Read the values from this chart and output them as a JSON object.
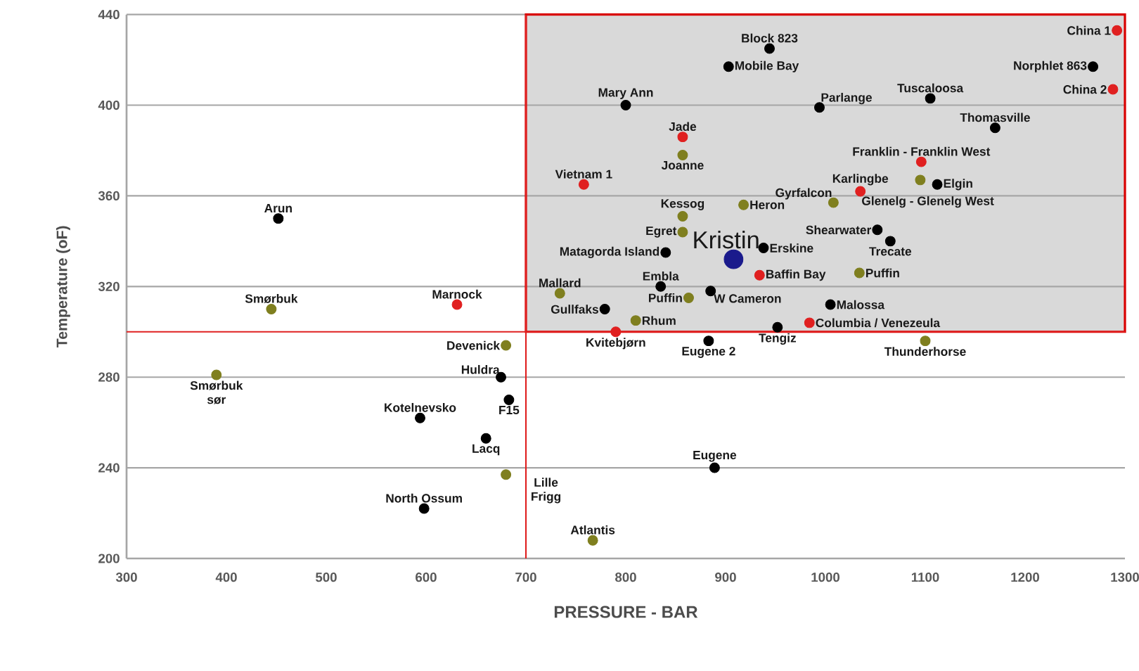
{
  "chart_data": {
    "type": "scatter",
    "xlabel": "PRESSURE - BAR",
    "ylabel": "Temperature (oF)",
    "xlim": [
      300,
      1300
    ],
    "ylim": [
      200,
      440
    ],
    "xticks": [
      300,
      400,
      500,
      600,
      700,
      800,
      900,
      1000,
      1100,
      1200,
      1300
    ],
    "yticks": [
      200,
      240,
      280,
      320,
      360,
      400,
      440
    ],
    "grid": "y",
    "ref_lines": [
      {
        "axis": "x",
        "value": 700,
        "color": "#e02020"
      },
      {
        "axis": "y",
        "value": 300,
        "color": "#e02020"
      }
    ],
    "bands": [
      {
        "axis": "x",
        "from": 700,
        "to": 1300,
        "color": "#d9d9d9"
      }
    ],
    "series": [
      {
        "color": "#000000",
        "x": [
          452,
          675,
          683,
          594,
          660,
          598,
          889,
          883,
          952,
          779,
          885,
          1005,
          835,
          840,
          938,
          1052,
          1065,
          1112,
          800,
          994,
          903,
          944,
          1105,
          1170,
          1268
        ],
        "values": [
          350,
          280,
          270,
          262,
          253,
          222,
          240,
          296,
          302,
          310,
          318,
          312,
          320,
          335,
          337,
          345,
          340,
          365,
          400,
          399,
          417,
          425,
          403,
          390,
          417
        ]
      },
      {
        "color": "#7f7f1f",
        "x": [
          445,
          390,
          680,
          680,
          767,
          1100,
          810,
          863,
          734,
          1034,
          857,
          857,
          918,
          1008,
          1095,
          857
        ],
        "values": [
          310,
          281,
          294,
          237,
          208,
          296,
          305,
          315,
          317,
          326,
          344,
          351,
          356,
          357,
          367,
          378
        ]
      },
      {
        "color": "#e02020",
        "x": [
          631,
          790,
          984,
          934,
          1035,
          1096,
          758,
          857,
          1292,
          1288
        ],
        "values": [
          312,
          300,
          304,
          325,
          362,
          375,
          365,
          386,
          433,
          407
        ]
      },
      {
        "color": "#1a1a8c",
        "x": [
          908
        ],
        "values": [
          332
        ]
      }
    ],
    "annotations": [
      {
        "text": "Arun",
        "x": 452,
        "y": 350
      },
      {
        "text": "Smørbuk",
        "x": 445,
        "y": 310
      },
      {
        "text": "Marnock",
        "x": 631,
        "y": 312
      },
      {
        "text": "Smørbuk sør",
        "x": 390,
        "y": 281
      },
      {
        "text": "Devenick",
        "x": 680,
        "y": 294
      },
      {
        "text": "Huldra",
        "x": 675,
        "y": 280
      },
      {
        "text": "F15",
        "x": 683,
        "y": 270
      },
      {
        "text": "Kotelnevsko",
        "x": 594,
        "y": 262
      },
      {
        "text": "Lacq",
        "x": 660,
        "y": 253
      },
      {
        "text": "Lille Frigg",
        "x": 680,
        "y": 237
      },
      {
        "text": "North Ossum",
        "x": 598,
        "y": 222
      },
      {
        "text": "Atlantis",
        "x": 767,
        "y": 208
      },
      {
        "text": "Eugene",
        "x": 889,
        "y": 240
      },
      {
        "text": "Eugene 2",
        "x": 883,
        "y": 296
      },
      {
        "text": "Kvitebjørn",
        "x": 790,
        "y": 300
      },
      {
        "text": "Tengiz",
        "x": 952,
        "y": 302
      },
      {
        "text": "Thunderhorse",
        "x": 1100,
        "y": 296
      },
      {
        "text": "Columbia / Venezeula",
        "x": 984,
        "y": 304
      },
      {
        "text": "Rhum",
        "x": 810,
        "y": 305
      },
      {
        "text": "Gullfaks",
        "x": 779,
        "y": 310
      },
      {
        "text": "Puffin",
        "x": 863,
        "y": 315
      },
      {
        "text": "W Cameron",
        "x": 885,
        "y": 318
      },
      {
        "text": "Malossa",
        "x": 1005,
        "y": 312
      },
      {
        "text": "Mallard",
        "x": 734,
        "y": 317
      },
      {
        "text": "Embla",
        "x": 835,
        "y": 320
      },
      {
        "text": "Baffin Bay",
        "x": 934,
        "y": 325
      },
      {
        "text": "Puffin",
        "x": 1034,
        "y": 326
      },
      {
        "text": "Matagorda Island",
        "x": 840,
        "y": 335
      },
      {
        "text": "Kristin",
        "x": 908,
        "y": 332
      },
      {
        "text": "Erskine",
        "x": 938,
        "y": 337
      },
      {
        "text": "Egret",
        "x": 857,
        "y": 344
      },
      {
        "text": "Kessog",
        "x": 857,
        "y": 351
      },
      {
        "text": "Heron",
        "x": 918,
        "y": 356
      },
      {
        "text": "Shearwater",
        "x": 1052,
        "y": 345
      },
      {
        "text": "Trecate",
        "x": 1065,
        "y": 340
      },
      {
        "text": "Gyrfalcon",
        "x": 1008,
        "y": 357
      },
      {
        "text": "Glenelg - Glenelg West",
        "x": 1095,
        "y": 367
      },
      {
        "text": "Karlingbe",
        "x": 1035,
        "y": 362
      },
      {
        "text": "Franklin - Franklin West",
        "x": 1096,
        "y": 375
      },
      {
        "text": "Elgin",
        "x": 1112,
        "y": 365
      },
      {
        "text": "Vietnam 1",
        "x": 758,
        "y": 365
      },
      {
        "text": "Joanne",
        "x": 857,
        "y": 378
      },
      {
        "text": "Jade",
        "x": 857,
        "y": 386
      },
      {
        "text": "Mary Ann",
        "x": 800,
        "y": 400
      },
      {
        "text": "Parlange",
        "x": 994,
        "y": 399
      },
      {
        "text": "Mobile Bay",
        "x": 903,
        "y": 417
      },
      {
        "text": "Block 823",
        "x": 944,
        "y": 425
      },
      {
        "text": "Tuscaloosa",
        "x": 1105,
        "y": 403
      },
      {
        "text": "Thomasville",
        "x": 1170,
        "y": 390
      },
      {
        "text": "China 1",
        "x": 1292,
        "y": 433
      },
      {
        "text": "Norphlet 863",
        "x": 1268,
        "y": 417
      },
      {
        "text": "China 2",
        "x": 1288,
        "y": 407
      }
    ]
  }
}
